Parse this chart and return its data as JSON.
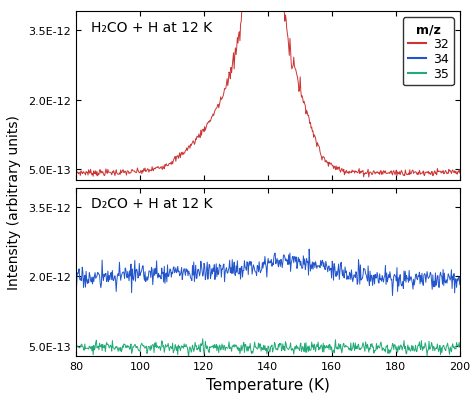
{
  "title_top": "H₂CO + H at 12 K",
  "title_bottom": "D₂CO + H at 12 K",
  "xlabel": "Temperature (K)",
  "ylabel": "Intensity (arbitrary units)",
  "xmin": 80,
  "xmax": 200,
  "ymin": 2.8e-13,
  "ymax": 3.9e-12,
  "yticks": [
    5e-13,
    2e-12,
    3.5e-12
  ],
  "ytick_labels": [
    "5.0E-13",
    "2.0E-12",
    "3.5E-12"
  ],
  "xticks": [
    80,
    100,
    120,
    140,
    160,
    180,
    200
  ],
  "legend_title": "m/z",
  "legend_entries": [
    "32",
    "34",
    "35"
  ],
  "line_colors_top": [
    "#cc3333"
  ],
  "line_colors_bot": [
    "#2255cc",
    "#22aa77"
  ],
  "seed": 7,
  "noise_points": 600
}
